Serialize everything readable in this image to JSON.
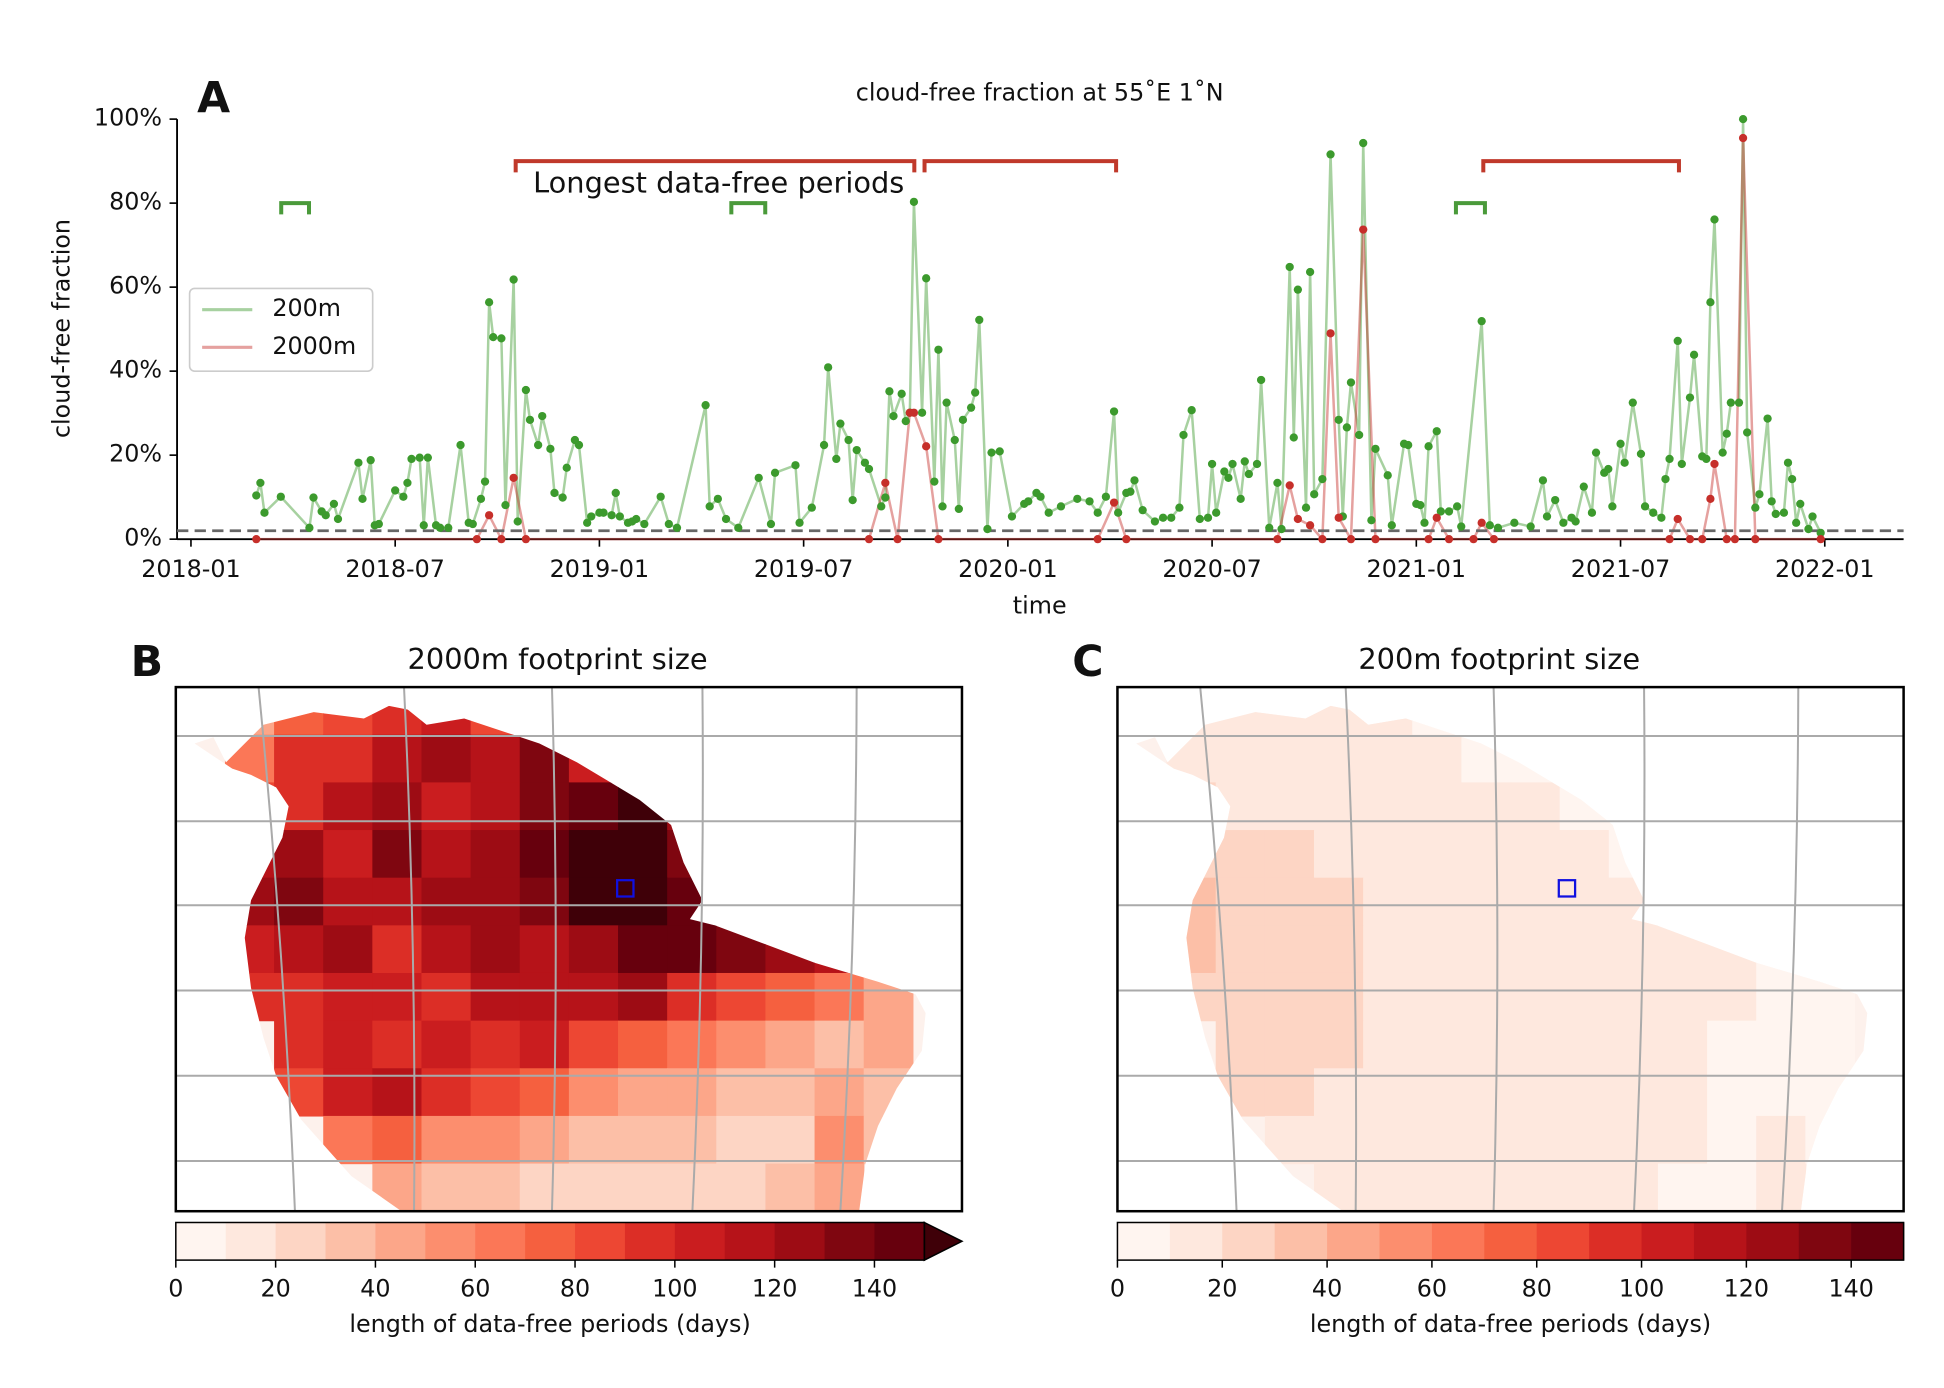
{
  "chart_data": [
    {
      "type": "line",
      "panel_label": "A",
      "title": "cloud-free fraction at 55˚E 1˚N",
      "xlabel": "time",
      "ylabel": "cloud-free fraction",
      "annotation": "Longest data-free periods",
      "xlim": [
        2017.966,
        2022.193
      ],
      "xticks": [
        {
          "value": 2018.0,
          "label": "2018-01"
        },
        {
          "value": 2018.5,
          "label": "2018-07"
        },
        {
          "value": 2019.0,
          "label": "2019-01"
        },
        {
          "value": 2019.5,
          "label": "2019-07"
        },
        {
          "value": 2020.0,
          "label": "2020-01"
        },
        {
          "value": 2020.5,
          "label": "2020-07"
        },
        {
          "value": 2021.0,
          "label": "2021-01"
        },
        {
          "value": 2021.5,
          "label": "2021-07"
        },
        {
          "value": 2022.0,
          "label": "2022-01"
        }
      ],
      "ylim": [
        0,
        100
      ],
      "yticks": [
        {
          "value": 0,
          "label": "0%"
        },
        {
          "value": 20,
          "label": "20%"
        },
        {
          "value": 40,
          "label": "40%"
        },
        {
          "value": 60,
          "label": "60%"
        },
        {
          "value": 80,
          "label": "80%"
        },
        {
          "value": 100,
          "label": "100%"
        }
      ],
      "grid": false,
      "legend": "center left",
      "reference_line": 2,
      "series": [
        {
          "name": "200m",
          "color": "#3c9a2d",
          "x": [
            2018.16,
            2018.17,
            2018.18,
            2018.22,
            2018.29,
            2018.3,
            2018.32,
            2018.33,
            2018.35,
            2018.36,
            2018.41,
            2018.42,
            2018.44,
            2018.45,
            2018.46,
            2018.5,
            2018.52,
            2018.53,
            2018.54,
            2018.56,
            2018.57,
            2018.58,
            2018.6,
            2018.61,
            2018.63,
            2018.66,
            2018.68,
            2018.69,
            2018.71,
            2018.72,
            2018.73,
            2018.74,
            2018.76,
            2018.77,
            2018.79,
            2018.8,
            2018.82,
            2018.83,
            2018.85,
            2018.86,
            2018.88,
            2018.89,
            2018.91,
            2018.92,
            2018.94,
            2018.95,
            2018.97,
            2018.98,
            2019.0,
            2019.01,
            2019.03,
            2019.04,
            2019.05,
            2019.07,
            2019.08,
            2019.09,
            2019.11,
            2019.15,
            2019.17,
            2019.19,
            2019.26,
            2019.27,
            2019.29,
            2019.31,
            2019.34,
            2019.39,
            2019.42,
            2019.43,
            2019.48,
            2019.49,
            2019.52,
            2019.55,
            2019.56,
            2019.58,
            2019.59,
            2019.61,
            2019.62,
            2019.63,
            2019.65,
            2019.66,
            2019.69,
            2019.7,
            2019.71,
            2019.72,
            2019.74,
            2019.75,
            2019.76,
            2019.77,
            2019.79,
            2019.8,
            2019.82,
            2019.83,
            2019.84,
            2019.85,
            2019.87,
            2019.88,
            2019.89,
            2019.91,
            2019.92,
            2019.93,
            2019.95,
            2019.96,
            2019.98,
            2020.01,
            2020.04,
            2020.05,
            2020.07,
            2020.08,
            2020.1,
            2020.13,
            2020.17,
            2020.2,
            2020.22,
            2020.24,
            2020.26,
            2020.27,
            2020.29,
            2020.3,
            2020.31,
            2020.33,
            2020.36,
            2020.38,
            2020.4,
            2020.42,
            2020.43,
            2020.45,
            2020.47,
            2020.49,
            2020.5,
            2020.51,
            2020.53,
            2020.54,
            2020.55,
            2020.57,
            2020.58,
            2020.59,
            2020.61,
            2020.62,
            2020.64,
            2020.66,
            2020.67,
            2020.69,
            2020.7,
            2020.71,
            2020.73,
            2020.74,
            2020.75,
            2020.77,
            2020.79,
            2020.81,
            2020.82,
            2020.83,
            2020.84,
            2020.86,
            2020.87,
            2020.89,
            2020.9,
            2020.93,
            2020.94,
            2020.97,
            2020.98,
            2021.0,
            2021.01,
            2021.02,
            2021.03,
            2021.05,
            2021.06,
            2021.08,
            2021.1,
            2021.11,
            2021.16,
            2021.18,
            2021.2,
            2021.24,
            2021.28,
            2021.31,
            2021.32,
            2021.34,
            2021.36,
            2021.38,
            2021.39,
            2021.41,
            2021.43,
            2021.44,
            2021.46,
            2021.47,
            2021.48,
            2021.5,
            2021.51,
            2021.53,
            2021.55,
            2021.56,
            2021.58,
            2021.6,
            2021.61,
            2021.62,
            2021.64,
            2021.65,
            2021.67,
            2021.68,
            2021.7,
            2021.71,
            2021.72,
            2021.73,
            2021.75,
            2021.76,
            2021.77,
            2021.79,
            2021.8,
            2021.81,
            2021.83,
            2021.84,
            2021.86,
            2021.87,
            2021.88,
            2021.9,
            2021.91,
            2021.92,
            2021.93,
            2021.94,
            2021.96,
            2021.97,
            2021.99
          ],
          "values": [
            10.4,
            13.4,
            6.3,
            10.1,
            2.7,
            9.9,
            6.6,
            5.7,
            8.4,
            4.8,
            18.2,
            9.6,
            18.8,
            3.3,
            3.6,
            11.6,
            10.1,
            13.4,
            19.1,
            19.4,
            3.3,
            19.4,
            3.3,
            2.7,
            2.7,
            22.4,
            3.9,
            3.6,
            9.6,
            13.7,
            56.4,
            48.1,
            47.8,
            8.1,
            61.8,
            4.2,
            35.5,
            28.4,
            22.4,
            29.3,
            21.5,
            11.0,
            9.9,
            17.0,
            23.6,
            22.4,
            3.9,
            5.4,
            6.3,
            6.3,
            5.7,
            11.0,
            5.4,
            3.9,
            4.2,
            4.8,
            3.6,
            10.1,
            3.6,
            2.7,
            31.9,
            7.8,
            9.6,
            4.8,
            2.7,
            14.6,
            3.6,
            15.8,
            17.6,
            3.9,
            7.5,
            22.4,
            40.9,
            19.1,
            27.5,
            23.6,
            9.3,
            21.2,
            18.2,
            16.7,
            7.8,
            9.9,
            35.2,
            29.3,
            34.6,
            28.1,
            30.1,
            80.3,
            30.1,
            62.1,
            13.7,
            45.1,
            7.8,
            32.5,
            23.6,
            7.2,
            28.4,
            31.3,
            34.9,
            52.2,
            2.4,
            20.6,
            20.9,
            5.4,
            8.4,
            9.0,
            11.0,
            10.1,
            6.3,
            7.8,
            9.6,
            9.0,
            6.3,
            10.1,
            30.4,
            6.3,
            11.0,
            11.3,
            14.0,
            6.9,
            4.2,
            5.1,
            5.1,
            7.5,
            24.8,
            30.7,
            4.8,
            5.1,
            17.9,
            6.3,
            16.1,
            14.6,
            17.9,
            9.6,
            18.5,
            15.5,
            17.9,
            37.9,
            2.7,
            13.4,
            2.4,
            64.8,
            24.2,
            59.4,
            7.5,
            63.6,
            10.7,
            14.3,
            91.6,
            28.4,
            5.4,
            26.6,
            37.3,
            24.8,
            94.3,
            4.5,
            21.5,
            15.2,
            3.3,
            22.7,
            22.4,
            8.4,
            8.1,
            3.9,
            22.1,
            25.7,
            6.6,
            6.6,
            7.8,
            3.0,
            51.9,
            3.3,
            2.7,
            3.9,
            3.0,
            14.0,
            5.4,
            9.3,
            3.9,
            5.1,
            4.2,
            12.5,
            6.3,
            20.6,
            15.8,
            16.7,
            7.8,
            22.7,
            18.2,
            32.5,
            20.3,
            7.8,
            6.3,
            5.1,
            14.3,
            19.1,
            47.2,
            17.9,
            33.7,
            43.9,
            19.7,
            19.1,
            56.4,
            76.1,
            20.6,
            25.1,
            32.5,
            32.5,
            100,
            25.4,
            7.5,
            10.7,
            28.7,
            9.0,
            6.0,
            6.3,
            18.2,
            14.3,
            3.9,
            8.4,
            2.4,
            5.4,
            1.5
          ]
        },
        {
          "name": "2000m",
          "color": "#c62f2a",
          "x": [
            2018.16,
            2018.7,
            2018.73,
            2018.76,
            2018.79,
            2018.82,
            2019.66,
            2019.7,
            2019.73,
            2019.76,
            2019.77,
            2019.8,
            2019.83,
            2020.22,
            2020.26,
            2020.29,
            2020.66,
            2020.69,
            2020.71,
            2020.74,
            2020.77,
            2020.79,
            2020.81,
            2020.84,
            2020.87,
            2020.9,
            2021.03,
            2021.05,
            2021.08,
            2021.14,
            2021.16,
            2021.19,
            2021.62,
            2021.64,
            2021.67,
            2021.7,
            2021.72,
            2021.73,
            2021.76,
            2021.78,
            2021.8,
            2021.83,
            2021.99
          ],
          "values": [
            0,
            0,
            5.7,
            0,
            14.6,
            0,
            0,
            13.4,
            0,
            30.1,
            30.1,
            22.1,
            0,
            0,
            8.7,
            0,
            0,
            12.8,
            4.8,
            3.3,
            0,
            49.0,
            5.1,
            0,
            73.7,
            0,
            0,
            5.1,
            0,
            0,
            3.9,
            0,
            0,
            4.8,
            0,
            0,
            9.6,
            17.9,
            0,
            0,
            95.5,
            0,
            0
          ]
        }
      ],
      "brackets": [
        {
          "color": "#4a9a3a",
          "start": 2018.221,
          "end": 2018.289,
          "level": 80
        },
        {
          "color": "#4a9a3a",
          "start": 2019.323,
          "end": 2019.406,
          "level": 80
        },
        {
          "color": "#4a9a3a",
          "start": 2021.097,
          "end": 2021.168,
          "level": 80
        },
        {
          "color": "#c0392b",
          "start": 2018.795,
          "end": 2019.771,
          "level": 90
        },
        {
          "color": "#c0392b",
          "start": 2019.796,
          "end": 2020.265,
          "level": 90
        },
        {
          "color": "#c0392b",
          "start": 2021.164,
          "end": 2021.643,
          "level": 90
        }
      ]
    },
    {
      "type": "heatmap",
      "panel_label": "B",
      "title": "2000m footprint size",
      "colorbar_label": "length of data-free periods (days)",
      "clim": [
        0,
        150
      ],
      "cticks": [
        0,
        20,
        40,
        60,
        80,
        100,
        120,
        140
      ],
      "extend": "max",
      "extend_color": "#3f0008",
      "colors": [
        "#fff5f0",
        "#fee8de",
        "#fdd5c4",
        "#fcbfa7",
        "#fca689",
        "#fc8e6e",
        "#fb7757",
        "#f5603f",
        "#ed4733",
        "#dc2e26",
        "#ca1d1f",
        "#b61319",
        "#9d0c14",
        "#7f0610",
        "#67000d"
      ],
      "values": [
        [
          null,
          45,
          70,
          85,
          95,
          100,
          85,
          50,
          null,
          null,
          null,
          null,
          null,
          null,
          null,
          null
        ],
        [
          null,
          60,
          90,
          95,
          110,
          120,
          115,
          130,
          100,
          null,
          null,
          null,
          null,
          null,
          null,
          null
        ],
        [
          null,
          80,
          95,
          110,
          120,
          100,
          110,
          130,
          145,
          150,
          120,
          null,
          null,
          null,
          null,
          null
        ],
        [
          null,
          110,
          120,
          105,
          130,
          115,
          120,
          140,
          155,
          155,
          130,
          null,
          null,
          null,
          null,
          null
        ],
        [
          null,
          120,
          130,
          115,
          110,
          120,
          125,
          130,
          150,
          155,
          140,
          110,
          null,
          null,
          null,
          null
        ],
        [
          null,
          100,
          110,
          120,
          95,
          110,
          120,
          110,
          120,
          140,
          145,
          130,
          120,
          110,
          null,
          null
        ],
        [
          null,
          90,
          95,
          105,
          100,
          95,
          110,
          115,
          110,
          120,
          90,
          80,
          70,
          60,
          45,
          null
        ],
        [
          null,
          null,
          90,
          100,
          95,
          105,
          90,
          100,
          80,
          70,
          60,
          50,
          40,
          35,
          40,
          null
        ],
        [
          null,
          null,
          80,
          105,
          110,
          95,
          85,
          70,
          55,
          45,
          40,
          35,
          30,
          40,
          35,
          null
        ],
        [
          null,
          null,
          null,
          60,
          70,
          55,
          50,
          40,
          35,
          30,
          30,
          25,
          20,
          50,
          30,
          null
        ],
        [
          null,
          null,
          null,
          null,
          40,
          35,
          30,
          25,
          25,
          20,
          20,
          25,
          30,
          40,
          null,
          null
        ]
      ]
    },
    {
      "type": "heatmap",
      "panel_label": "C",
      "title": "200m footprint size",
      "colorbar_label": "length of data-free periods (days)",
      "clim": [
        0,
        150
      ],
      "cticks": [
        0,
        20,
        40,
        60,
        80,
        100,
        120,
        140
      ],
      "colors": [
        "#fff5f0",
        "#fee8de",
        "#fdd5c4",
        "#fcbfa7",
        "#fca689",
        "#fc8e6e",
        "#fb7757",
        "#f5603f",
        "#ed4733",
        "#dc2e26",
        "#ca1d1f",
        "#b61319",
        "#9d0c14",
        "#7f0610",
        "#67000d"
      ],
      "values": [
        [
          null,
          15,
          15,
          10,
          10,
          10,
          8,
          8,
          null,
          null,
          null,
          null,
          null,
          null,
          null,
          null
        ],
        [
          null,
          15,
          15,
          12,
          12,
          10,
          10,
          8,
          8,
          null,
          null,
          null,
          null,
          null,
          null,
          null
        ],
        [
          null,
          20,
          18,
          15,
          15,
          12,
          12,
          10,
          10,
          8,
          8,
          null,
          null,
          null,
          null,
          null
        ],
        [
          null,
          25,
          22,
          20,
          15,
          15,
          12,
          12,
          10,
          10,
          8,
          null,
          null,
          null,
          null,
          null
        ],
        [
          null,
          30,
          28,
          25,
          20,
          15,
          15,
          12,
          12,
          10,
          10,
          8,
          null,
          null,
          null,
          null
        ],
        [
          null,
          30,
          25,
          25,
          22,
          18,
          15,
          15,
          12,
          12,
          12,
          10,
          10,
          8,
          null,
          null
        ],
        [
          null,
          25,
          25,
          22,
          20,
          18,
          15,
          15,
          12,
          12,
          10,
          10,
          10,
          8,
          8,
          null
        ],
        [
          null,
          null,
          22,
          20,
          20,
          18,
          15,
          15,
          12,
          12,
          10,
          10,
          8,
          8,
          8,
          null
        ],
        [
          null,
          null,
          20,
          20,
          18,
          18,
          15,
          15,
          12,
          12,
          10,
          10,
          8,
          8,
          8,
          null
        ],
        [
          null,
          null,
          null,
          18,
          15,
          15,
          15,
          12,
          12,
          10,
          10,
          10,
          8,
          10,
          8,
          null
        ],
        [
          null,
          null,
          null,
          null,
          15,
          12,
          12,
          12,
          10,
          10,
          10,
          8,
          8,
          10,
          null,
          null
        ]
      ]
    }
  ]
}
